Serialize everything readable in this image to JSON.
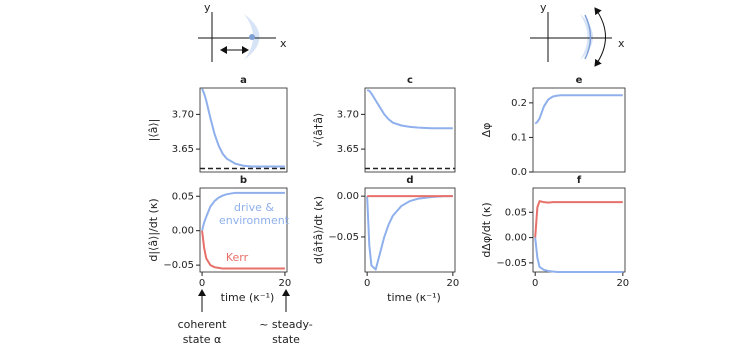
{
  "chart_data": [
    {
      "type": "line",
      "title": "a",
      "ylabel": "|⟨â⟩|",
      "xlim": [
        -0.5,
        20.5
      ],
      "ylim": [
        3.617,
        3.738
      ],
      "yticks": [
        {
          "value": 3.7,
          "label": "3.70"
        },
        {
          "value": 3.65,
          "label": "3.65"
        }
      ],
      "x": [
        0,
        0.5,
        1,
        2,
        3,
        4,
        5,
        6,
        8,
        10,
        12,
        15,
        18,
        20
      ],
      "series": [
        {
          "color": "#8fb0ec",
          "values": [
            3.737,
            3.73,
            3.72,
            3.695,
            3.672,
            3.655,
            3.643,
            3.636,
            3.629,
            3.626,
            3.625,
            3.625,
            3.625,
            3.625
          ]
        }
      ],
      "hlines": [
        {
          "y": 3.622,
          "color": "#222",
          "dashed": true
        }
      ]
    },
    {
      "type": "line",
      "title": "b",
      "ylabel": "d|⟨â⟩|/dt  (κ)",
      "xlabel": "time  (κ⁻¹)",
      "xlim": [
        -0.5,
        20.5
      ],
      "ylim": [
        -0.06,
        0.062
      ],
      "xticks": [
        0,
        20
      ],
      "yticks": [
        {
          "value": 0.05,
          "label": "0.05"
        },
        {
          "value": 0,
          "label": "0.00"
        },
        {
          "value": -0.05,
          "label": "−0.05"
        }
      ],
      "x": [
        0,
        0.5,
        1,
        2,
        3,
        4,
        5,
        6,
        8,
        10,
        12,
        15,
        18,
        20
      ],
      "series": [
        {
          "color": "#8fb0ec",
          "values": [
            0,
            0.012,
            0.02,
            0.035,
            0.043,
            0.048,
            0.051,
            0.053,
            0.055,
            0.055,
            0.055,
            0.055,
            0.055,
            0.055
          ]
        },
        {
          "color": "#e8706a",
          "values": [
            0,
            -0.025,
            -0.04,
            -0.05,
            -0.053,
            -0.054,
            -0.055,
            -0.055,
            -0.055,
            -0.055,
            -0.055,
            -0.055,
            -0.055,
            -0.055
          ]
        }
      ],
      "annotations": [
        {
          "lines": [
            "drive &",
            "environment"
          ],
          "color": "#8fb0ec"
        },
        {
          "lines": [
            "Kerr"
          ],
          "color": "#e8706a"
        }
      ]
    },
    {
      "type": "line",
      "title": "c",
      "ylabel": "√⟨â†â⟩",
      "xlim": [
        -0.5,
        20.5
      ],
      "ylim": [
        3.617,
        3.738
      ],
      "yticks": [
        {
          "value": 3.7,
          "label": "3.70"
        },
        {
          "value": 3.65,
          "label": "3.65"
        }
      ],
      "x": [
        0,
        0.5,
        1,
        2,
        3,
        4,
        5,
        6,
        8,
        10,
        12,
        15,
        18,
        20
      ],
      "series": [
        {
          "color": "#8fb0ec",
          "values": [
            3.735,
            3.734,
            3.73,
            3.72,
            3.71,
            3.7,
            3.693,
            3.688,
            3.684,
            3.682,
            3.681,
            3.68,
            3.68,
            3.68
          ]
        }
      ],
      "hlines": [
        {
          "y": 3.622,
          "color": "#222",
          "dashed": true
        }
      ]
    },
    {
      "type": "line",
      "title": "d",
      "ylabel": "d⟨â†â⟩/dt  (κ)",
      "xlabel": "time  (κ⁻¹)",
      "xlim": [
        -0.5,
        20.5
      ],
      "ylim": [
        -0.093,
        0.01
      ],
      "xticks": [
        0,
        20
      ],
      "yticks": [
        {
          "value": 0,
          "label": "0.00"
        },
        {
          "value": -0.05,
          "label": "−0.05"
        }
      ],
      "x": [
        0,
        0.5,
        1,
        2,
        3,
        4,
        5,
        6,
        8,
        10,
        12,
        15,
        18,
        20
      ],
      "series": [
        {
          "color": "#8fb0ec",
          "values": [
            0,
            -0.06,
            -0.085,
            -0.09,
            -0.07,
            -0.05,
            -0.035,
            -0.024,
            -0.012,
            -0.006,
            -0.003,
            -0.001,
            0,
            0
          ]
        },
        {
          "color": "#e8706a",
          "values": [
            0,
            0,
            0,
            0,
            0,
            0,
            0,
            0,
            0,
            0,
            0,
            0,
            0,
            0
          ]
        }
      ]
    },
    {
      "type": "line",
      "title": "e",
      "ylabel": "Δφ",
      "xlim": [
        -0.5,
        20.5
      ],
      "ylim": [
        0,
        0.243
      ],
      "yticks": [
        {
          "value": 0.2,
          "label": "0.2"
        },
        {
          "value": 0.1,
          "label": "0.1"
        },
        {
          "value": 0,
          "label": "0.0"
        }
      ],
      "x": [
        0,
        0.5,
        1,
        2,
        3,
        4,
        5,
        6,
        8,
        10,
        12,
        15,
        18,
        20
      ],
      "series": [
        {
          "color": "#8fb0ec",
          "values": [
            0.14,
            0.145,
            0.155,
            0.19,
            0.21,
            0.218,
            0.221,
            0.222,
            0.222,
            0.222,
            0.222,
            0.222,
            0.222,
            0.222
          ]
        }
      ]
    },
    {
      "type": "line",
      "title": "f",
      "ylabel": "dΔφ/dt  (κ)",
      "xlim": [
        -0.5,
        20.5
      ],
      "ylim": [
        -0.068,
        0.098
      ],
      "xticks": [
        0,
        20
      ],
      "yticks": [
        {
          "value": 0.05,
          "label": "0.05"
        },
        {
          "value": 0,
          "label": "0.00"
        },
        {
          "value": -0.05,
          "label": "−0.05"
        }
      ],
      "x": [
        0,
        0.5,
        1,
        2,
        3,
        4,
        5,
        6,
        8,
        10,
        12,
        15,
        18,
        20
      ],
      "series": [
        {
          "color": "#8fb0ec",
          "values": [
            0,
            -0.04,
            -0.058,
            -0.064,
            -0.066,
            -0.067,
            -0.068,
            -0.068,
            -0.068,
            -0.068,
            -0.068,
            -0.068,
            -0.068,
            -0.068
          ]
        },
        {
          "color": "#e8706a",
          "values": [
            0,
            0.06,
            0.072,
            0.07,
            0.069,
            0.07,
            0.07,
            0.07,
            0.07,
            0.07,
            0.07,
            0.07,
            0.07,
            0.07
          ]
        }
      ]
    }
  ],
  "schematics": [
    {
      "y_label": "y",
      "x_label": "x"
    },
    {
      "y_label": "y",
      "x_label": "x"
    }
  ],
  "notes": [
    {
      "lines": [
        "coherent",
        "state α"
      ]
    },
    {
      "lines": [
        "~ steady-",
        "state"
      ]
    }
  ]
}
